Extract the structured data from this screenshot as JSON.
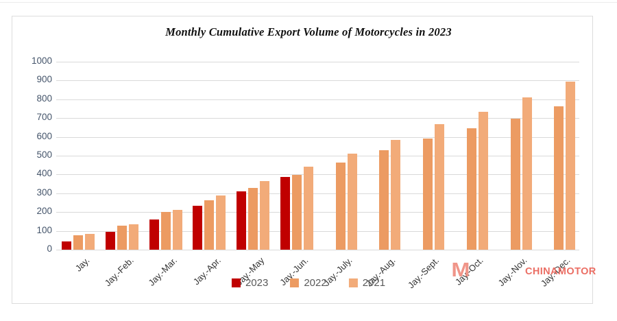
{
  "title": "Monthly Cumulative Export Volume of Motorcycles in  2023",
  "watermark": {
    "logo": "M",
    "brand": "CHINAMOTOR"
  },
  "chart_data": {
    "type": "bar",
    "title": "Monthly Cumulative Export Volume of Motorcycles in  2023",
    "categories": [
      "Jay.",
      "Jay.-Feb.",
      "Jay.-Mar.",
      "Jay.-Apr.",
      "Jay.-May",
      "Jay.-Jun.",
      "Jay.-July.",
      "Jay.-Aug.",
      "Jay.-Sept.",
      "Jay.-Oct.",
      "Jay.-Nov.",
      "Jay.-Dec."
    ],
    "series": [
      {
        "name": "2023",
        "color": "#c00000",
        "values": [
          45,
          96,
          160,
          232,
          309,
          388,
          null,
          null,
          null,
          null,
          null,
          null
        ]
      },
      {
        "name": "2022",
        "color": "#ec9b62",
        "values": [
          78,
          127,
          200,
          262,
          327,
          396,
          465,
          528,
          590,
          647,
          698,
          762
        ]
      },
      {
        "name": "2021",
        "color": "#f2ab79",
        "values": [
          84,
          134,
          212,
          290,
          365,
          440,
          512,
          583,
          668,
          732,
          811,
          894
        ]
      }
    ],
    "ylim": [
      0,
      1000
    ],
    "ytick_step": 100,
    "yticks": [
      "0",
      "100",
      "200",
      "300",
      "400",
      "500",
      "600",
      "700",
      "800",
      "900",
      "1000"
    ],
    "grid": "horizontal",
    "legend_position": "bottom",
    "colors": {
      "grid": "#d9d9d9",
      "y_tick_text": "#44546a",
      "x_tick_text": "#333333",
      "legend_text": "#595959",
      "watermark": "#ea675c"
    }
  }
}
